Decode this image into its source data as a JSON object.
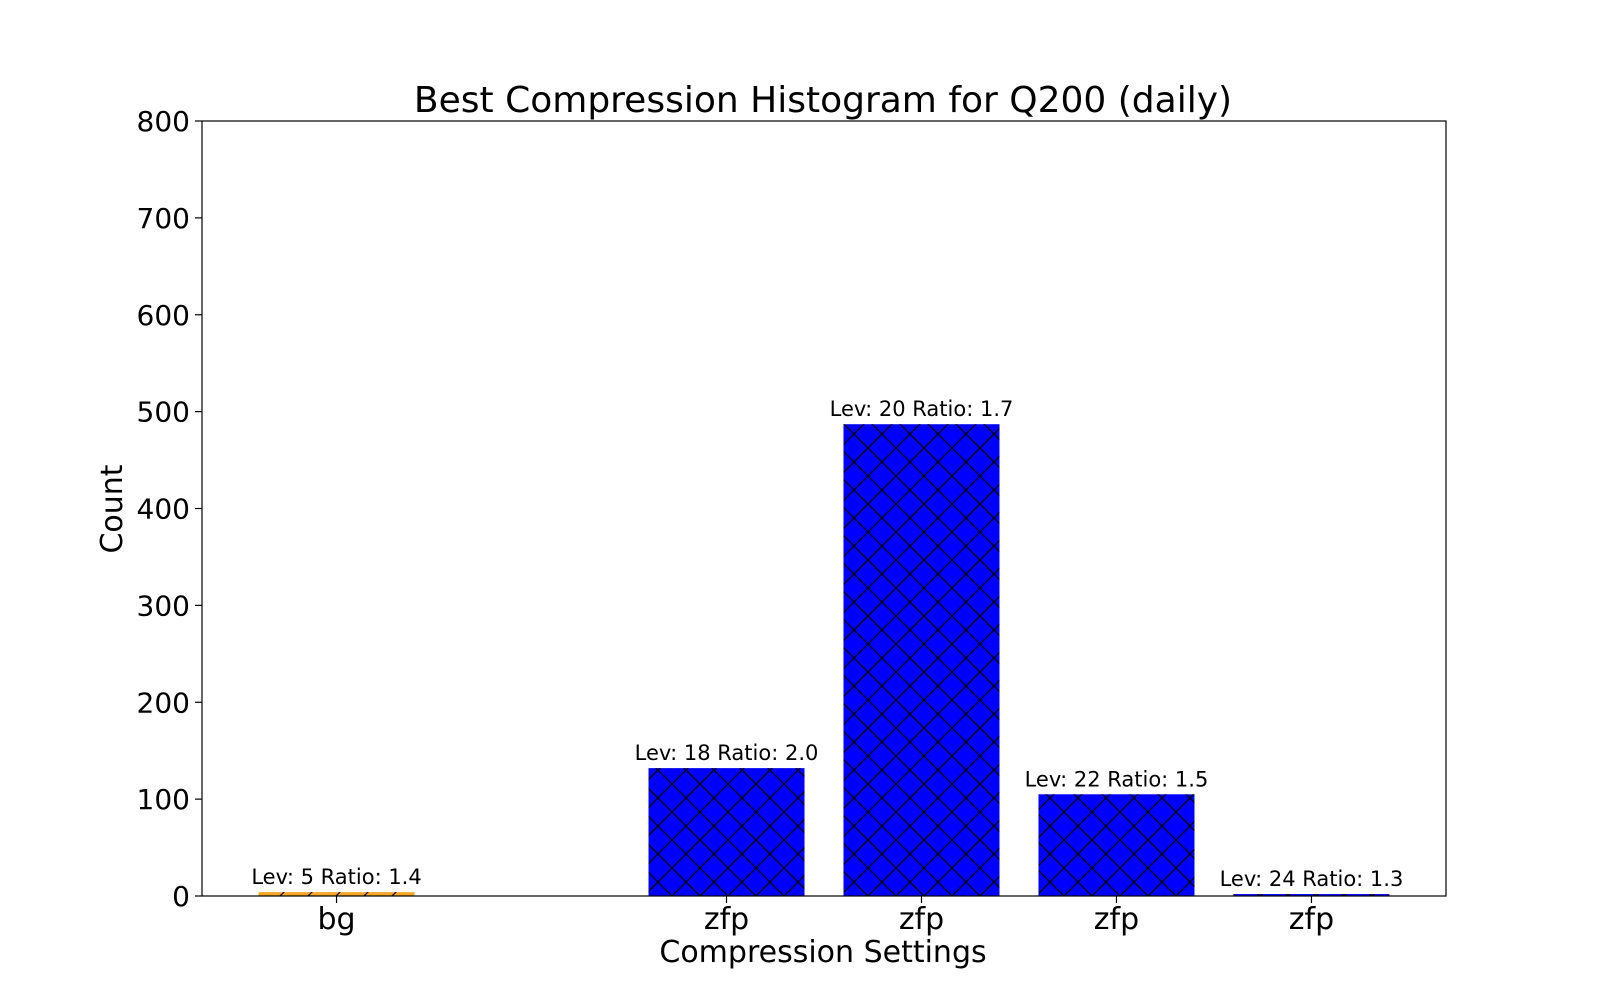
{
  "chart_data": {
    "type": "bar",
    "title": "Best Compression Histogram for Q200 (daily)",
    "xlabel": "Compression Settings",
    "ylabel": "Count",
    "ylim": [
      0,
      800
    ],
    "yticks": [
      0,
      100,
      200,
      300,
      400,
      500,
      600,
      700,
      800
    ],
    "categories": [
      "bg",
      "",
      "zfp",
      "zfp",
      "zfp",
      "zfp"
    ],
    "values": [
      4,
      0,
      132,
      487,
      105,
      2
    ],
    "data_labels": [
      "Lev: 5 Ratio: 1.4",
      "",
      "Lev: 18 Ratio: 2.0",
      "Lev: 20 Ratio: 1.7",
      "Lev: 22 Ratio: 1.5",
      "Lev: 24 Ratio: 1.3"
    ],
    "bar_colors": [
      "#f5a623",
      "#0000ff",
      "#0000ff",
      "#0000ff",
      "#0000ff",
      "#0000ff"
    ],
    "hatch": [
      "diagonal",
      "none",
      "cross",
      "cross",
      "cross",
      "cross"
    ],
    "grid": false,
    "legend": "none"
  }
}
